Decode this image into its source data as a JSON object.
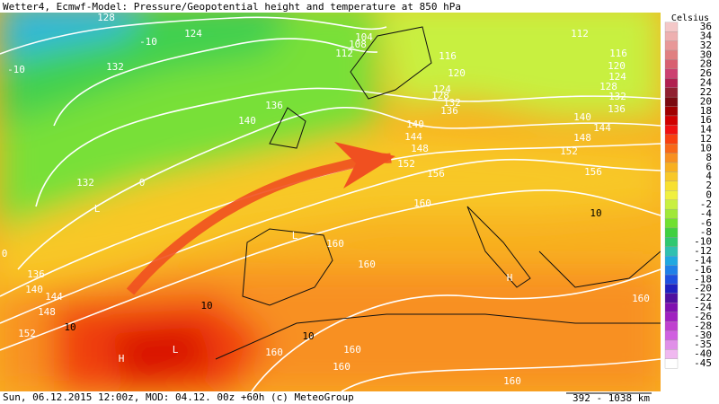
{
  "header": {
    "title": "Wetter4, Ecmwf-Model: Pressure/Geopotential height and temperature at 850 hPa"
  },
  "footer": {
    "text": "Sun, 06.12.2015 12:00z, MOD: 04.12. 00z +60h (c) MeteoGroup",
    "scale": "392 - 1038 km"
  },
  "legend": {
    "unit": "Celsius",
    "labels": [
      "36",
      "34",
      "32",
      "30",
      "28",
      "26",
      "24",
      "22",
      "20",
      "18",
      "16",
      "14",
      "12",
      "10",
      "8",
      "6",
      "4",
      "2",
      "0",
      "-2",
      "-4",
      "-6",
      "-8",
      "-10",
      "-12",
      "-14",
      "-16",
      "-18",
      "-20",
      "-22",
      "-24",
      "-26",
      "-28",
      "-30",
      "-35",
      "-40",
      "-45"
    ],
    "colors": [
      "#f4c8c8",
      "#eeb0b0",
      "#e89898",
      "#e07f80",
      "#d86070",
      "#cc4070",
      "#b02050",
      "#902030",
      "#7a0a10",
      "#a00000",
      "#d00000",
      "#f01010",
      "#f84010",
      "#f86818",
      "#f89020",
      "#f8b020",
      "#f8c828",
      "#f8e030",
      "#f0f040",
      "#c8f040",
      "#a0e838",
      "#70e030",
      "#40d040",
      "#30c870",
      "#30c0b0",
      "#20a8e0",
      "#2080e8",
      "#2050e0",
      "#2020c0",
      "#5010a0",
      "#8010b0",
      "#a020c0",
      "#c040d0",
      "#d060e0",
      "#e090e8",
      "#f0b8f0",
      "#ffffff"
    ]
  },
  "map_labels": [
    "128",
    "124",
    "-10",
    "-10",
    "132",
    "104",
    "108",
    "112",
    "116",
    "120",
    "124",
    "128",
    "132",
    "136",
    "140",
    "136",
    "140",
    "144",
    "148",
    "152",
    "156",
    "160",
    "132",
    "0",
    "L",
    "L",
    "160",
    "160",
    "136",
    "140",
    "144",
    "148",
    "152",
    "10",
    "10",
    "10",
    "160",
    "160",
    "160",
    "H",
    "L",
    "H",
    "160",
    "160",
    "10",
    "156",
    "152",
    "148",
    "144",
    "140",
    "136",
    "132",
    "128",
    "124",
    "120",
    "116",
    "112",
    "0"
  ]
}
